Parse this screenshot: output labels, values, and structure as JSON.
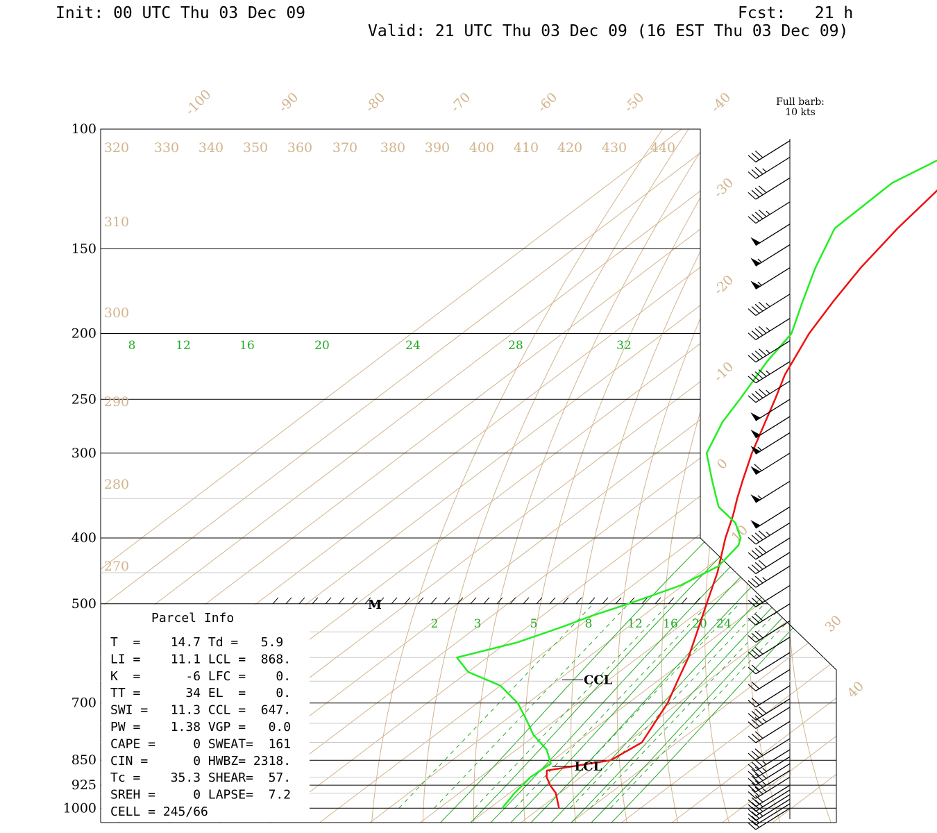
{
  "header": {
    "init": "Init: 00 UTC Thu 03 Dec 09",
    "fcst": "Fcst:   21 h",
    "valid": "Valid: 21 UTC Thu 03 Dec 09 (16 EST Thu 03 Dec 09)"
  },
  "barb_note": {
    "line1": "Full barb:",
    "line2": "10 kts"
  },
  "colors": {
    "temperature": "#ee1111",
    "dewpoint": "#22ee22",
    "isotherm": "#d2b48c",
    "mixing_ratio": "#22aa22",
    "grid": "#000000"
  },
  "chart_data": {
    "type": "line",
    "title": "",
    "pressure_levels": [
      "100",
      "150",
      "200",
      "250",
      "300",
      "400",
      "500",
      "700",
      "850",
      "925",
      "1000"
    ],
    "isotherm_labels": [
      "-100",
      "-90",
      "-80",
      "-70",
      "-60",
      "-50",
      "-40",
      "-30",
      "-20",
      "-10",
      "0",
      "10",
      "30",
      "40"
    ],
    "theta_labels": [
      "320",
      "330",
      "340",
      "350",
      "360",
      "370",
      "380",
      "390",
      "400",
      "410",
      "420",
      "430",
      "440",
      "310",
      "300",
      "290",
      "280",
      "270"
    ],
    "mixing_ratio_labels_upper": [
      "8",
      "12",
      "16",
      "20",
      "24",
      "28",
      "32"
    ],
    "mixing_ratio_labels_lower": [
      "2",
      "3",
      "5",
      "8",
      "12",
      "16",
      "20",
      "24"
    ],
    "series": [
      {
        "name": "Temperature",
        "color": "#ee1111",
        "pressure": [
          1000,
          950,
          925,
          900,
          880,
          850,
          800,
          750,
          700,
          650,
          600,
          550,
          500,
          450,
          400,
          370,
          350,
          330,
          300,
          270,
          250,
          230,
          200,
          180,
          160,
          140,
          120,
          110,
          105
        ],
        "temp_c": [
          13.8,
          9.2,
          6.0,
          3.2,
          1.5,
          11.5,
          13.0,
          10.5,
          7.8,
          4.0,
          0.0,
          -5.0,
          -10.5,
          -16.5,
          -24.0,
          -28.5,
          -32.0,
          -35.5,
          -41.0,
          -46.5,
          -50.5,
          -55.0,
          -61.0,
          -64.5,
          -68.0,
          -71.0,
          -73.5,
          -74.5,
          -75.0
        ]
      },
      {
        "name": "Dewpoint",
        "color": "#22ee22",
        "pressure": [
          1000,
          950,
          925,
          900,
          860,
          820,
          780,
          740,
          700,
          660,
          630,
          600,
          570,
          540,
          520,
          500,
          470,
          440,
          410,
          400,
          380,
          360,
          330,
          300,
          270,
          250,
          220,
          200,
          180,
          160,
          140,
          120,
          110,
          105
        ],
        "temp_c": [
          2.5,
          1.0,
          0.5,
          0.0,
          0.5,
          -4.0,
          -10.5,
          -16.0,
          -22.0,
          -30.0,
          -40.0,
          -46.0,
          -38.0,
          -33.0,
          -30.0,
          -26.0,
          -20.5,
          -18.0,
          -19.5,
          -21.0,
          -26.0,
          -33.5,
          -41.5,
          -50.0,
          -55.0,
          -57.5,
          -62.0,
          -64.5,
          -70.5,
          -77.0,
          -83.5,
          -84.0,
          -80.5,
          -77.0
        ]
      }
    ],
    "wind_barbs": [
      {
        "p": 1000,
        "kt": 20
      },
      {
        "p": 985,
        "kt": 20
      },
      {
        "p": 970,
        "kt": 25
      },
      {
        "p": 955,
        "kt": 25
      },
      {
        "p": 940,
        "kt": 30
      },
      {
        "p": 925,
        "kt": 30
      },
      {
        "p": 900,
        "kt": 35
      },
      {
        "p": 880,
        "kt": 35
      },
      {
        "p": 860,
        "kt": 35
      },
      {
        "p": 840,
        "kt": 35
      },
      {
        "p": 820,
        "kt": 35
      },
      {
        "p": 790,
        "kt": 30
      },
      {
        "p": 745,
        "kt": 30
      },
      {
        "p": 710,
        "kt": 35
      },
      {
        "p": 690,
        "kt": 40
      },
      {
        "p": 660,
        "kt": 20
      },
      {
        "p": 625,
        "kt": 20
      },
      {
        "p": 590,
        "kt": 20
      },
      {
        "p": 560,
        "kt": 30
      },
      {
        "p": 530,
        "kt": 30
      },
      {
        "p": 500,
        "kt": 30
      },
      {
        "p": 470,
        "kt": 30
      },
      {
        "p": 440,
        "kt": 35
      },
      {
        "p": 420,
        "kt": 40
      },
      {
        "p": 400,
        "kt": 40
      },
      {
        "p": 380,
        "kt": 45
      },
      {
        "p": 360,
        "kt": 50
      },
      {
        "p": 330,
        "kt": 55
      },
      {
        "p": 300,
        "kt": 60
      },
      {
        "p": 280,
        "kt": 55
      },
      {
        "p": 265,
        "kt": 50
      },
      {
        "p": 250,
        "kt": 50
      },
      {
        "p": 235,
        "kt": 45
      },
      {
        "p": 220,
        "kt": 45
      },
      {
        "p": 205,
        "kt": 45
      },
      {
        "p": 190,
        "kt": 45
      },
      {
        "p": 175,
        "kt": 45
      },
      {
        "p": 160,
        "kt": 55
      },
      {
        "p": 148,
        "kt": 55
      },
      {
        "p": 138,
        "kt": 50
      },
      {
        "p": 128,
        "kt": 45
      },
      {
        "p": 118,
        "kt": 40
      },
      {
        "p": 110,
        "kt": 35
      },
      {
        "p": 104,
        "kt": 30
      }
    ],
    "markers": {
      "lcl": "LCL",
      "ccl": "CCL",
      "m": "M"
    }
  },
  "parcel_info": {
    "title": "Parcel Info",
    "lines": [
      "T  =    14.7 Td =   5.9",
      "LI =    11.1 LCL =  868.",
      "K  =      -6 LFC =    0.",
      "TT =      34 EL  =    0.",
      "SWI =   11.3 CCL =  647.",
      "PW =    1.38 VGP =   0.0",
      "CAPE =     0 SWEAT=  161",
      "CIN =      0 HWBZ= 2318.",
      "Tc =    35.3 SHEAR=  57.",
      "SREH =     0 LAPSE=  7.2",
      "CELL = 245/66"
    ]
  }
}
